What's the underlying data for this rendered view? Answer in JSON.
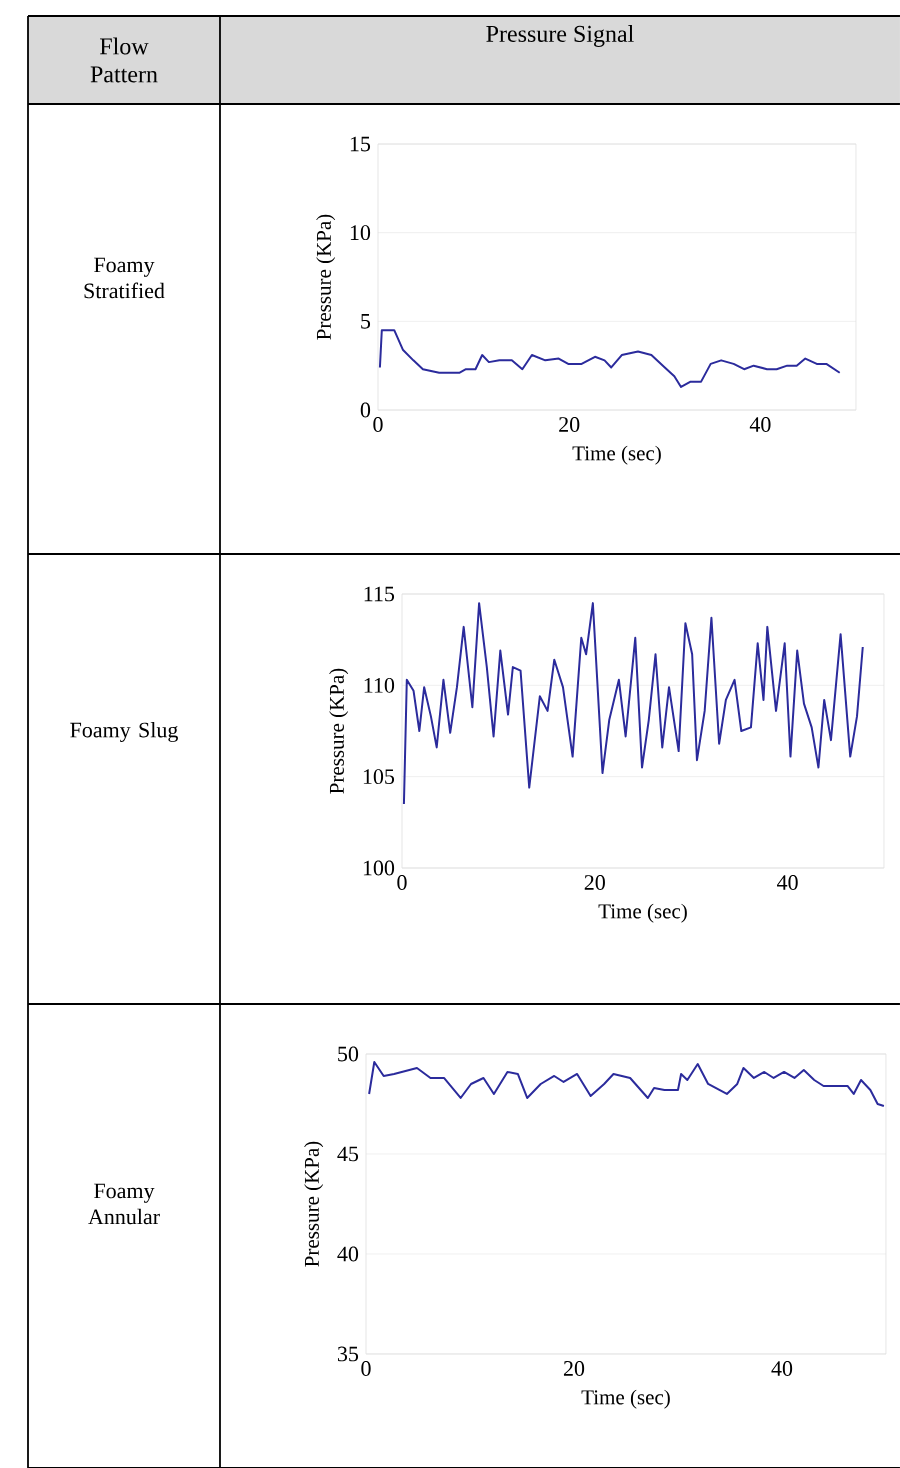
{
  "chart_data": [
    {
      "type": "line",
      "annotations": [
        "Foamy Stratified",
        "Flow Pattern",
        "Pressure Signal"
      ],
      "xlabel": "Time (sec)",
      "ylabel": "Pressure (KPa)",
      "color": "#2b2b9c",
      "grid": "y",
      "xlim": [
        0,
        50
      ],
      "ylim": [
        0,
        15
      ],
      "xticks": [
        0,
        20,
        40
      ],
      "yticks": [
        0,
        5,
        10,
        15
      ],
      "x": [
        0.2,
        0.4,
        1.7,
        2.6,
        3.7,
        4.7,
        6.4,
        8.5,
        9.2,
        10.2,
        10.9,
        11.6,
        12.7,
        14,
        15.1,
        16.1,
        17.5,
        18.9,
        19.9,
        21.3,
        22.7,
        23.7,
        24.4,
        25.5,
        27.2,
        28.6,
        30,
        31,
        31.7,
        32.7,
        33.8,
        34.8,
        35.9,
        37.2,
        38.3,
        39.3,
        40.7,
        41.7,
        42.8,
        43.8,
        44.7,
        45.9,
        46.9,
        48.3
      ],
      "values": [
        2.4,
        4.5,
        4.5,
        3.4,
        2.8,
        2.3,
        2.1,
        2.1,
        2.3,
        2.3,
        3.1,
        2.7,
        2.8,
        2.8,
        2.3,
        3.1,
        2.8,
        2.9,
        2.6,
        2.6,
        3.0,
        2.8,
        2.4,
        3.1,
        3.3,
        3.1,
        2.4,
        1.9,
        1.3,
        1.6,
        1.6,
        2.6,
        2.8,
        2.6,
        2.3,
        2.5,
        2.3,
        2.3,
        2.5,
        2.5,
        2.9,
        2.6,
        2.6,
        2.1
      ]
    },
    {
      "type": "line",
      "annotations": [
        "Foamy Slug"
      ],
      "xlabel": "Time (sec)",
      "ylabel": "Pressure (KPa)",
      "color": "#2b2b9c",
      "grid": "y",
      "xlim": [
        0,
        50
      ],
      "ylim": [
        100,
        115
      ],
      "xticks": [
        0,
        20,
        40
      ],
      "yticks": [
        100,
        105,
        110,
        115
      ],
      "x": [
        0.2,
        0.5,
        1.2,
        1.8,
        2.3,
        3.0,
        3.6,
        4.3,
        5.0,
        5.7,
        6.4,
        7.3,
        8.0,
        8.8,
        9.5,
        10.2,
        11.0,
        11.5,
        12.3,
        13.2,
        14.3,
        15.1,
        15.8,
        16.7,
        17.7,
        18.6,
        19.1,
        19.8,
        20.8,
        21.5,
        22.5,
        23.2,
        24.2,
        24.9,
        25.6,
        26.3,
        27.0,
        27.7,
        28.7,
        29.4,
        30.1,
        30.6,
        31.4,
        32.1,
        32.9,
        33.6,
        34.5,
        35.2,
        36.2,
        36.9,
        37.5,
        37.9,
        38.8,
        39.7,
        40.3,
        41.0,
        41.7,
        42.5,
        43.2,
        43.8,
        44.5,
        45.5,
        46.5,
        47.2,
        47.8
      ],
      "values": [
        103.5,
        110.3,
        109.7,
        107.5,
        109.9,
        108.3,
        106.6,
        110.3,
        107.4,
        109.9,
        113.2,
        108.8,
        114.5,
        111.0,
        107.2,
        111.9,
        108.4,
        111.0,
        110.8,
        104.4,
        109.4,
        108.6,
        111.4,
        109.9,
        106.1,
        112.6,
        111.7,
        114.5,
        105.2,
        108.1,
        110.3,
        107.2,
        112.6,
        105.5,
        108.1,
        111.7,
        106.6,
        109.9,
        106.4,
        113.4,
        111.7,
        105.9,
        108.6,
        113.7,
        106.8,
        109.2,
        110.3,
        107.5,
        107.7,
        112.3,
        109.2,
        113.2,
        108.6,
        112.3,
        106.1,
        111.9,
        109.0,
        107.7,
        105.5,
        109.2,
        107.0,
        112.8,
        106.1,
        108.3,
        112.1
      ]
    },
    {
      "type": "line",
      "annotations": [
        "Foamy Annular"
      ],
      "xlabel": "Time (sec)",
      "ylabel": "Pressure (KPa)",
      "color": "#2b2b9c",
      "grid": "y",
      "xlim": [
        0,
        50
      ],
      "ylim": [
        35,
        50
      ],
      "xticks": [
        0,
        20,
        40
      ],
      "yticks": [
        35,
        40,
        45,
        50
      ],
      "x": [
        0.3,
        0.8,
        1.7,
        2.7,
        4.9,
        6.2,
        7.5,
        9.1,
        10.1,
        11.3,
        12.3,
        13.6,
        14.6,
        15.5,
        16.8,
        18.1,
        19,
        20.3,
        21.6,
        22.9,
        23.8,
        25.4,
        27.1,
        27.7,
        28.7,
        30,
        30.3,
        30.9,
        31.9,
        32.9,
        34.7,
        35.7,
        36.3,
        37.3,
        38.3,
        39.2,
        40.2,
        41.2,
        42.1,
        43.1,
        44,
        46.3,
        46.9,
        47.6,
        48.5,
        49.2,
        49.8
      ],
      "values": [
        48.0,
        49.6,
        48.9,
        49.0,
        49.3,
        48.8,
        48.8,
        47.8,
        48.5,
        48.8,
        48.0,
        49.1,
        49.0,
        47.8,
        48.5,
        48.9,
        48.6,
        49.0,
        47.9,
        48.5,
        49.0,
        48.8,
        47.8,
        48.3,
        48.2,
        48.2,
        49.0,
        48.7,
        49.5,
        48.5,
        48.0,
        48.5,
        49.3,
        48.8,
        49.1,
        48.8,
        49.1,
        48.8,
        49.2,
        48.7,
        48.4,
        48.4,
        48.0,
        48.7,
        48.2,
        47.5,
        47.4
      ]
    }
  ]
}
